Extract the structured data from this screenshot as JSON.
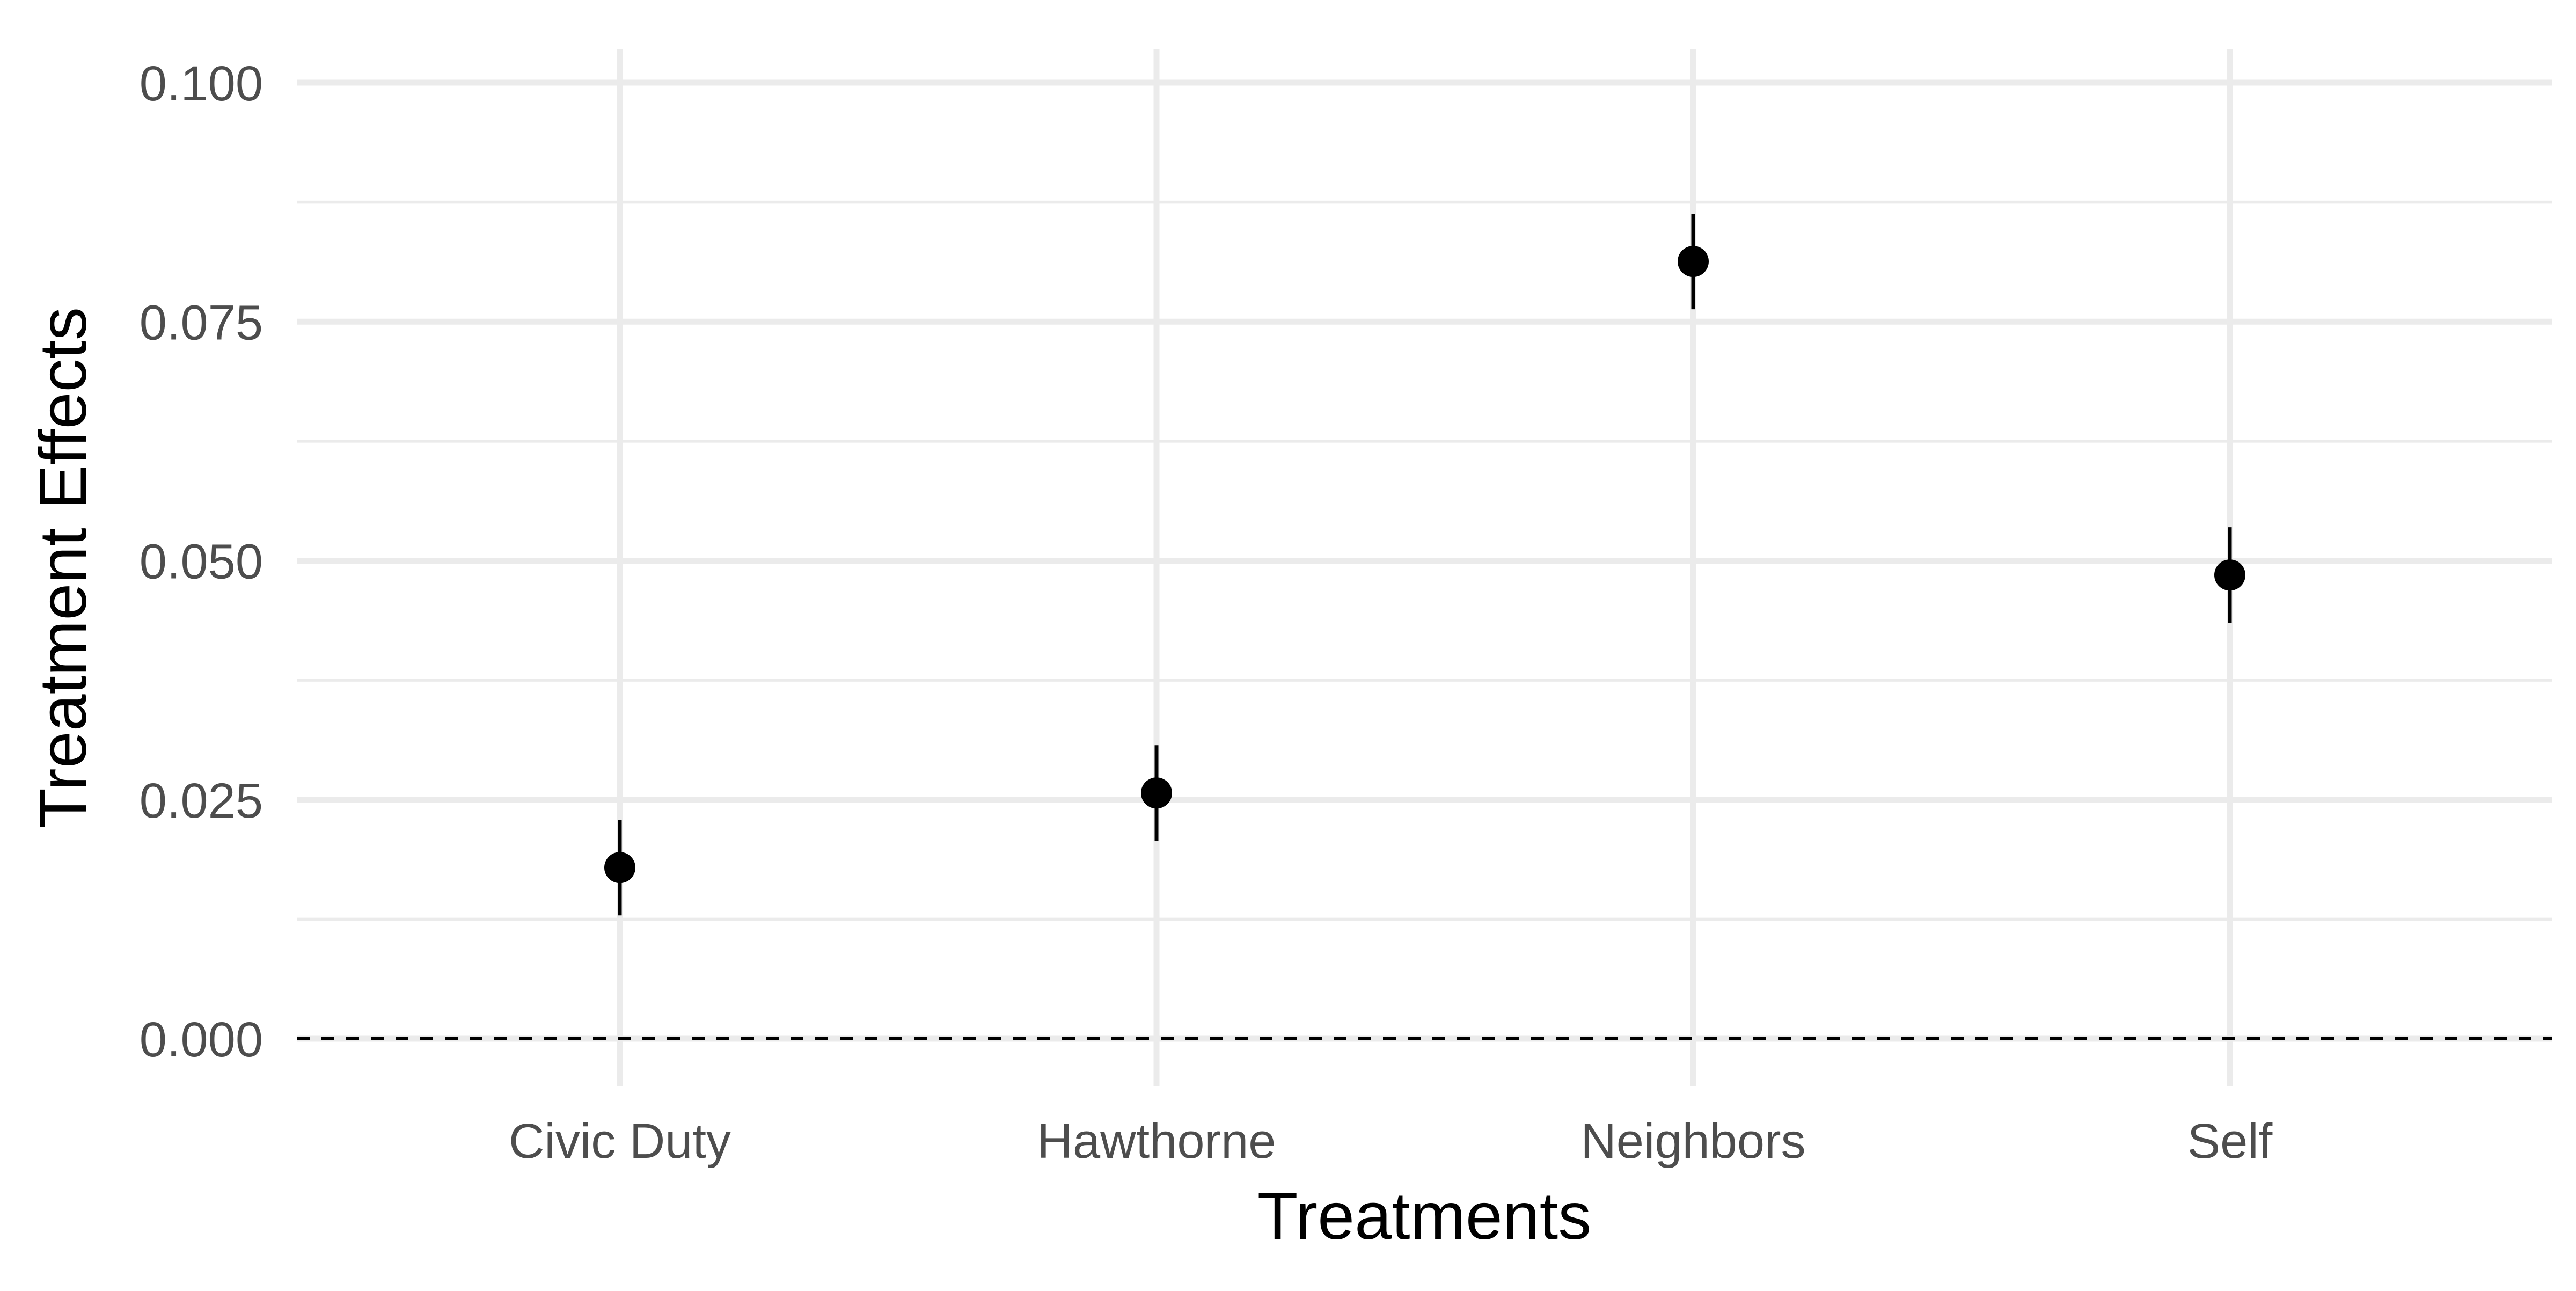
{
  "chart_data": {
    "type": "scatter",
    "title": "",
    "xlabel": "Treatments",
    "ylabel": "Treatment Effects",
    "categories": [
      "Civic Duty",
      "Hawthorne",
      "Neighbors",
      "Self"
    ],
    "series": [
      {
        "values": [
          0.0179,
          0.0257,
          0.0813,
          0.0485
        ],
        "lower": [
          0.0129,
          0.0207,
          0.0763,
          0.0435
        ],
        "upper": [
          0.0229,
          0.0307,
          0.0863,
          0.0535
        ]
      }
    ],
    "ylim": [
      -0.005,
      0.1035
    ],
    "yticks": [
      0.0,
      0.025,
      0.05,
      0.075,
      0.1
    ],
    "ytick_labels": [
      "0.000",
      "0.025",
      "0.050",
      "0.075",
      "0.100"
    ],
    "yminor_ticks": [
      0.0125,
      0.0375,
      0.0625,
      0.0875
    ],
    "reference_line": {
      "y": 0,
      "style": "dashed"
    },
    "grid": true,
    "legend": "none",
    "colors": {
      "points": "#000000",
      "grid": "#ebebeb",
      "tick_labels": "#4d4d4d",
      "background": "#ffffff"
    }
  }
}
